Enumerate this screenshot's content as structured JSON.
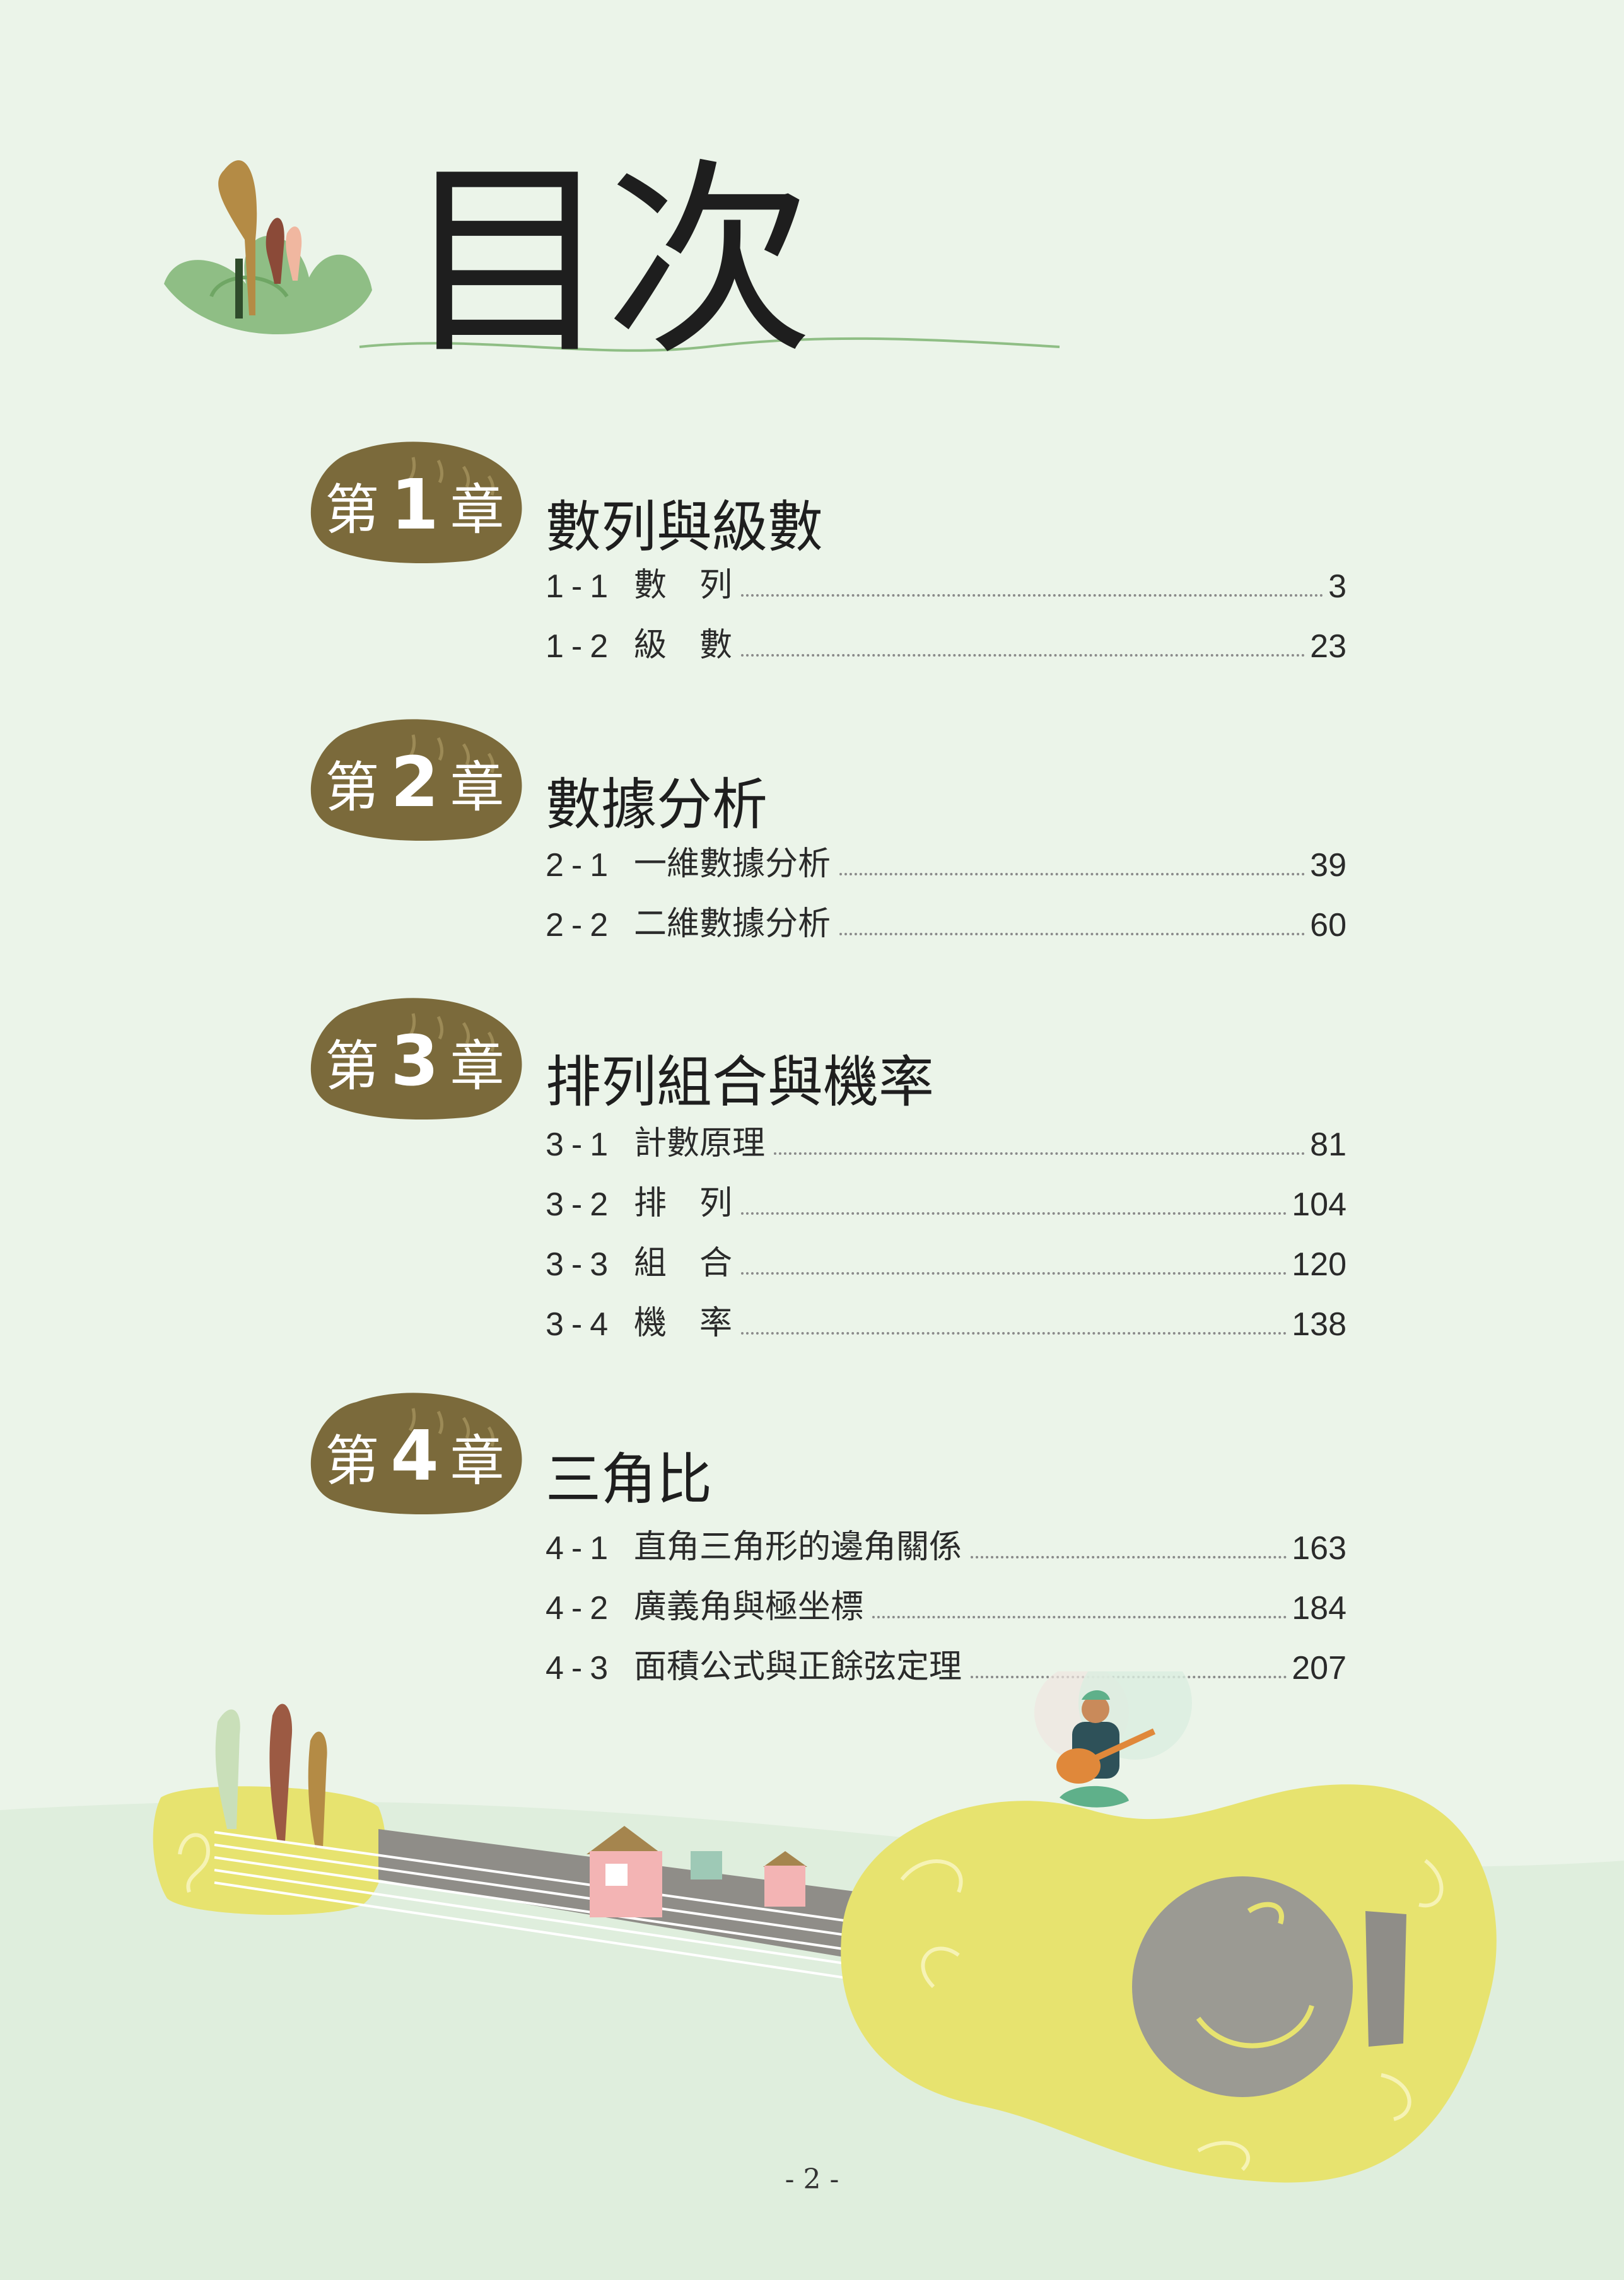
{
  "title": "目次",
  "chapters": [
    {
      "prefix": "第",
      "number": "1",
      "suffix": "章",
      "title": "數列與級數",
      "sections": [
        {
          "id": "1-1",
          "name": "數　列",
          "page": "3"
        },
        {
          "id": "1-2",
          "name": "級　數",
          "page": "23"
        }
      ]
    },
    {
      "prefix": "第",
      "number": "2",
      "suffix": "章",
      "title": "數據分析",
      "sections": [
        {
          "id": "2-1",
          "name": "一維數據分析",
          "page": "39"
        },
        {
          "id": "2-2",
          "name": "二維數據分析",
          "page": "60"
        }
      ]
    },
    {
      "prefix": "第",
      "number": "3",
      "suffix": "章",
      "title": "排列組合與機率",
      "sections": [
        {
          "id": "3-1",
          "name": "計數原理",
          "page": "81"
        },
        {
          "id": "3-2",
          "name": "排　列",
          "page": "104"
        },
        {
          "id": "3-3",
          "name": "組　合",
          "page": "120"
        },
        {
          "id": "3-4",
          "name": "機　率",
          "page": "138"
        }
      ]
    },
    {
      "prefix": "第",
      "number": "4",
      "suffix": "章",
      "title": "三角比",
      "sections": [
        {
          "id": "4-1",
          "name": "直角三角形的邊角關係",
          "page": "163"
        },
        {
          "id": "4-2",
          "name": "廣義角與極坐標",
          "page": "184"
        },
        {
          "id": "4-3",
          "name": "面積公式與正餘弦定理",
          "page": "207"
        }
      ]
    }
  ],
  "page_number": "- 2 -",
  "colors": {
    "background": "#ebf4e9",
    "badge": "#7b6a3b",
    "guitar": "#e7e36f",
    "sound_hole": "#9b9a93",
    "plant_green": "#8fbe85"
  }
}
